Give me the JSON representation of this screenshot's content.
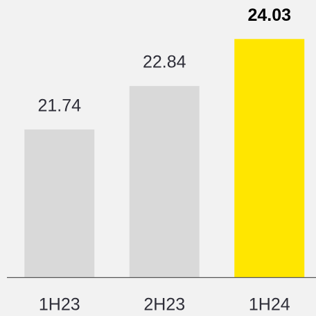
{
  "chart_data": {
    "type": "bar",
    "categories": [
      "1H23",
      "2H23",
      "1H24"
    ],
    "values": [
      21.74,
      22.84,
      24.03
    ],
    "colors": [
      "#d9d9d9",
      "#d9d9d9",
      "#ffe600"
    ],
    "ylim": [
      18,
      25
    ]
  }
}
